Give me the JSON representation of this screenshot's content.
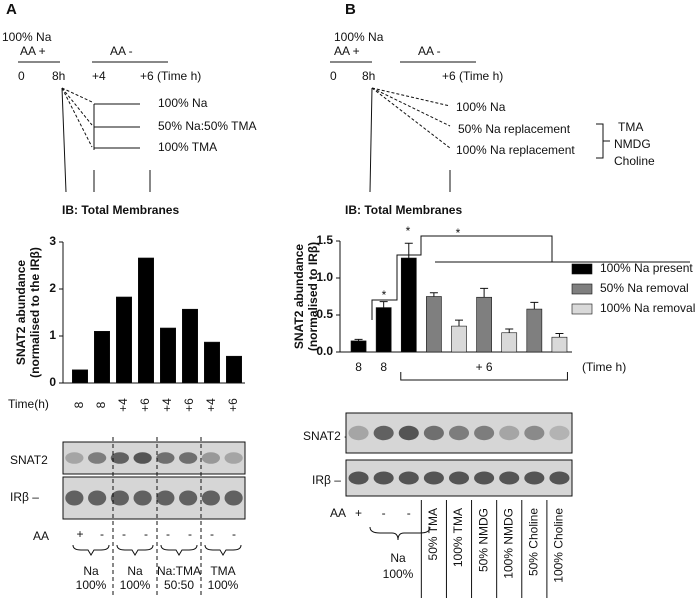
{
  "chart_data": [
    {
      "type": "bar",
      "ylabel": [
        "SNAT2 abundance",
        "(normalised to the IRβ)"
      ],
      "xlabel": "Time(h)",
      "categories": [
        "8",
        "8",
        "+4",
        "+6",
        "+4",
        "+6",
        "+4",
        "+6"
      ],
      "values": [
        0.28,
        1.1,
        1.83,
        2.66,
        1.17,
        1.57,
        0.87,
        0.57
      ],
      "color": "#000000",
      "ylim": [
        0,
        3
      ],
      "yticks": [
        0,
        1,
        2,
        3
      ]
    },
    {
      "type": "bar",
      "ylabel": [
        "SNAT2 abundance",
        "(normalised to IRβ)"
      ],
      "xlabel": "(Time h)",
      "categories": [
        "8",
        "8",
        null,
        null,
        null,
        null,
        null,
        null,
        null
      ],
      "group_label": "+ 6",
      "series": [
        {
          "name": "100% Na present",
          "color": "#000000",
          "values": [
            0.15,
            0.6,
            1.27,
            null,
            null,
            null,
            null,
            null,
            null
          ],
          "errors": [
            0.02,
            0.08,
            0.2,
            null,
            null,
            null,
            null,
            null,
            null
          ]
        },
        {
          "name": "50% Na removal",
          "color": "#7f7f7f",
          "values": [
            null,
            null,
            null,
            0.75,
            null,
            0.74,
            null,
            0.58,
            null
          ],
          "errors": [
            null,
            null,
            null,
            0.05,
            null,
            0.12,
            null,
            0.09,
            null
          ]
        },
        {
          "name": "100% Na removal",
          "color": "#d9d9d9",
          "values": [
            null,
            null,
            null,
            null,
            0.35,
            null,
            0.26,
            null,
            0.2
          ],
          "errors": [
            null,
            null,
            null,
            null,
            0.08,
            null,
            0.05,
            null,
            0.05
          ]
        }
      ],
      "annotations": [
        "*",
        "*",
        "*"
      ],
      "ylim": [
        0,
        1.5
      ],
      "yticks": [
        {
          "value": 0,
          "label": "0.0"
        },
        0.5,
        {
          "value": 1,
          "label": "1.0"
        },
        1.5
      ]
    }
  ],
  "panel_a": {
    "label": "A",
    "start": "100% Na",
    "aa_plus": "AA +",
    "aa_minus": "AA -",
    "times": [
      "0",
      "8h",
      "+4",
      "+6 (Time h)"
    ],
    "conditions": [
      "100% Na",
      "50% Na:50% TMA",
      "100% TMA"
    ],
    "ib": "IB: Total Membranes",
    "blot_labels": [
      "SNAT2",
      "IRβ –"
    ],
    "aa": "AA",
    "aa_signs": [
      "+",
      "-",
      "-",
      "-",
      "-",
      "-",
      "-",
      "-"
    ],
    "groups": [
      [
        "Na",
        "100%"
      ],
      [
        "Na",
        "100%"
      ],
      [
        "Na:TMA",
        "50:50"
      ],
      [
        "TMA",
        "100%"
      ]
    ]
  },
  "panel_b": {
    "label": "B",
    "start": "100% Na",
    "aa_plus": "AA +",
    "aa_minus": "AA -",
    "times": [
      "0",
      "8h",
      "+6  (Time h)"
    ],
    "conditions": [
      "100% Na",
      "50% Na replacement",
      "100% Na replacement"
    ],
    "replacements": [
      "TMA",
      "NMDG",
      "Choline"
    ],
    "ib": "IB: Total Membranes",
    "blot_labels": [
      "SNAT2 -",
      "IRβ –"
    ],
    "aa": "AA",
    "aa_signs": [
      "+",
      "-",
      "-"
    ],
    "group": [
      "Na",
      "100%"
    ],
    "lanes": [
      "50% TMA",
      "100% TMA",
      "50% NMDG",
      "100% NMDG",
      "50% Choline",
      "100% Choline"
    ]
  }
}
